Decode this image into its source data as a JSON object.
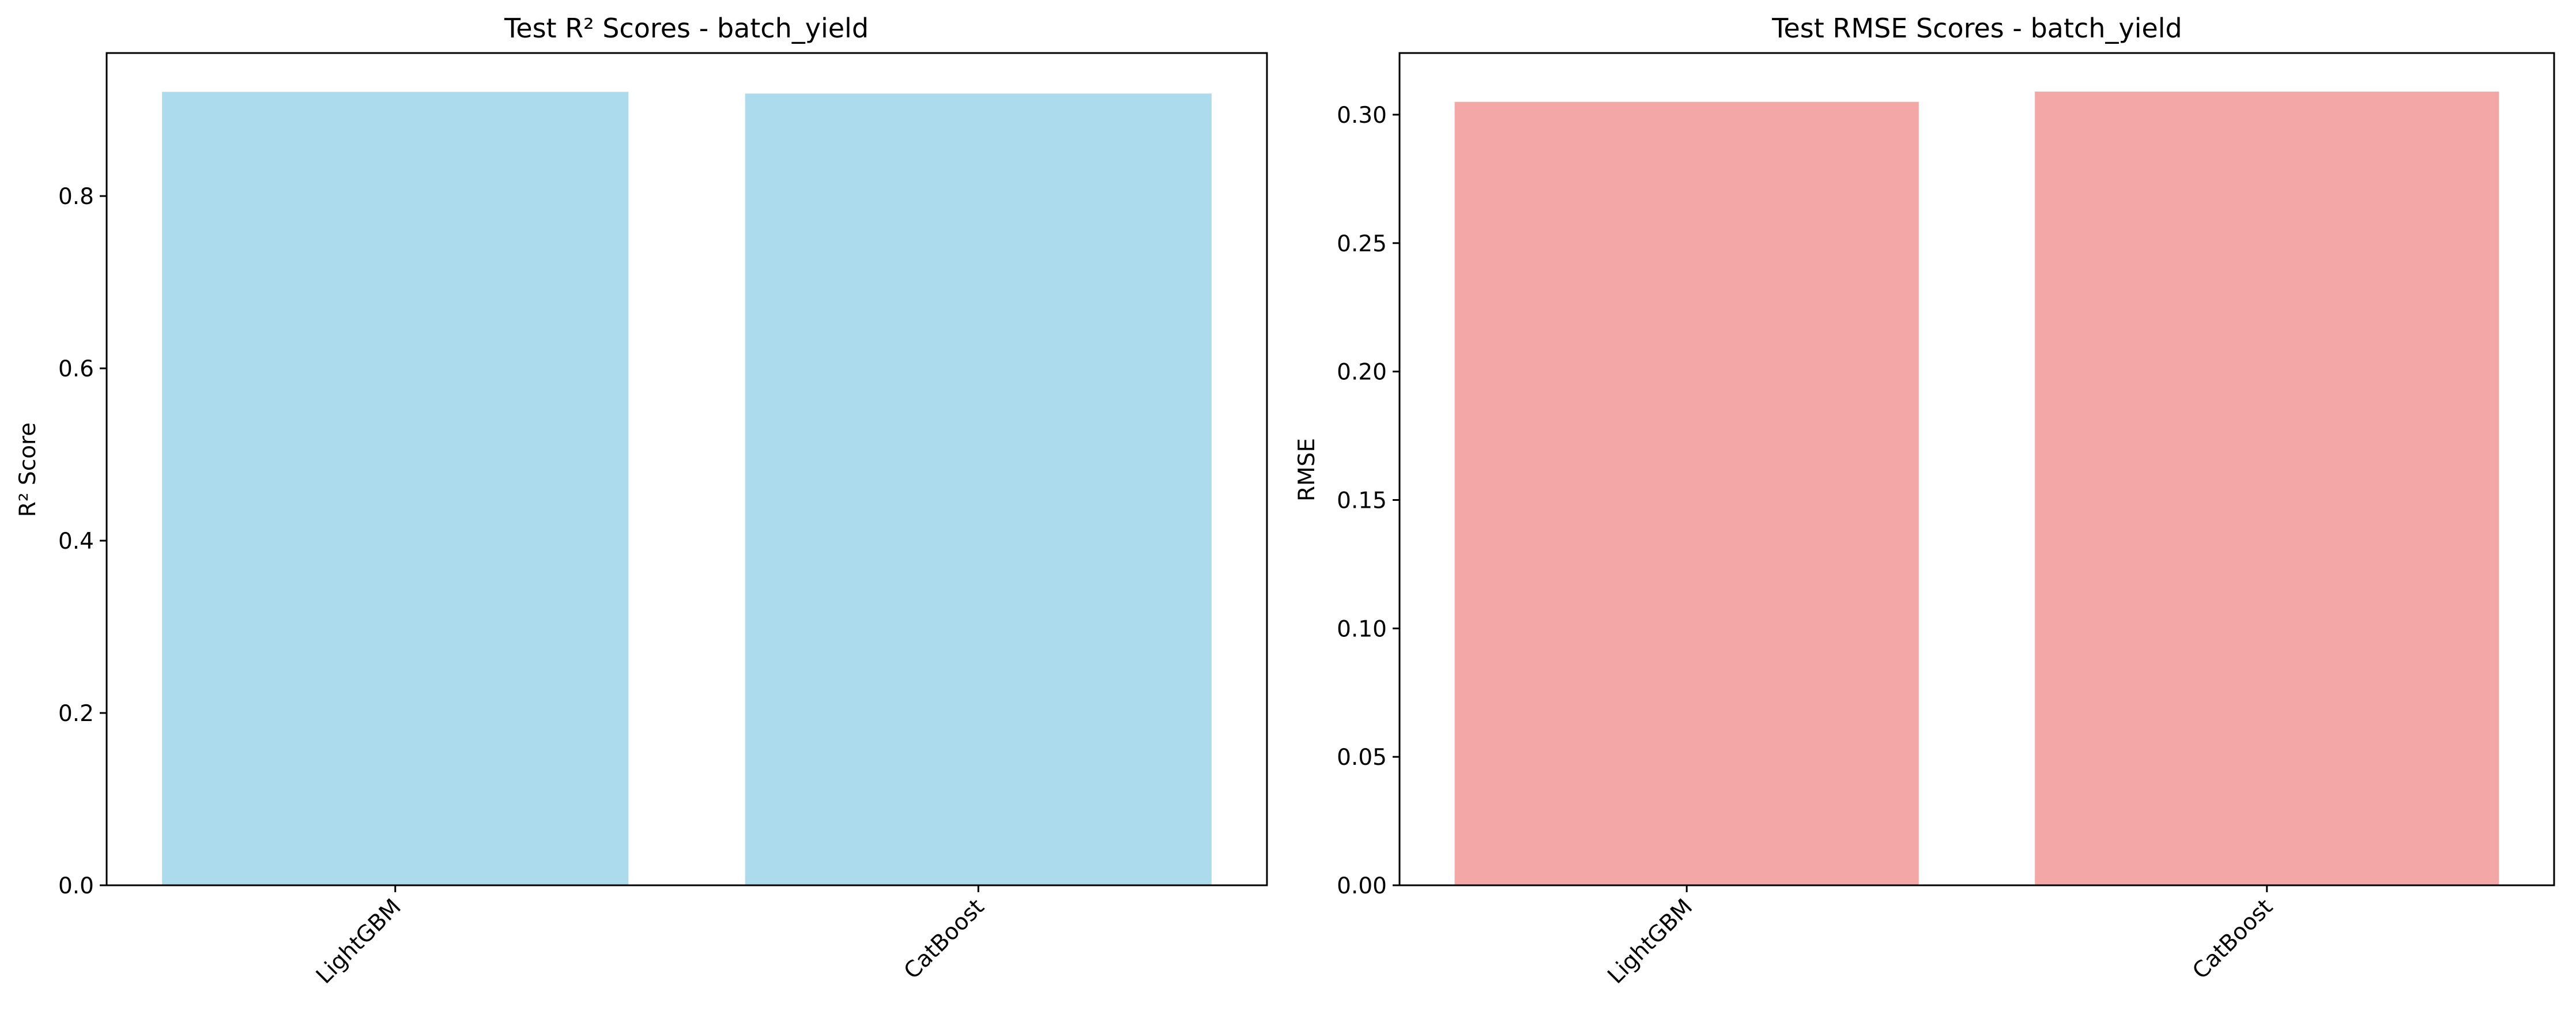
{
  "chart_data": [
    {
      "type": "bar",
      "title": "Test R² Scores - batch_yield",
      "xlabel": "",
      "ylabel": "R² Score",
      "categories": [
        "LightGBM",
        "CatBoost"
      ],
      "values": [
        0.921,
        0.919
      ],
      "ylim": [
        0,
        0.966
      ],
      "yticks": [
        0.0,
        0.2,
        0.4,
        0.6,
        0.8
      ],
      "ytick_labels": [
        "0.0",
        "0.2",
        "0.4",
        "0.6",
        "0.8"
      ],
      "bar_color": "#ADDBEE",
      "grid": false,
      "legend": "none"
    },
    {
      "type": "bar",
      "title": "Test RMSE Scores - batch_yield",
      "xlabel": "",
      "ylabel": "RMSE",
      "categories": [
        "LightGBM",
        "CatBoost"
      ],
      "values": [
        0.305,
        0.309
      ],
      "ylim": [
        0,
        0.324
      ],
      "yticks": [
        0.0,
        0.05,
        0.1,
        0.15,
        0.2,
        0.25,
        0.3
      ],
      "ytick_labels": [
        "0.00",
        "0.05",
        "0.10",
        "0.15",
        "0.20",
        "0.25",
        "0.30"
      ],
      "bar_color": "#F3A7A7",
      "grid": false,
      "legend": "none"
    }
  ]
}
